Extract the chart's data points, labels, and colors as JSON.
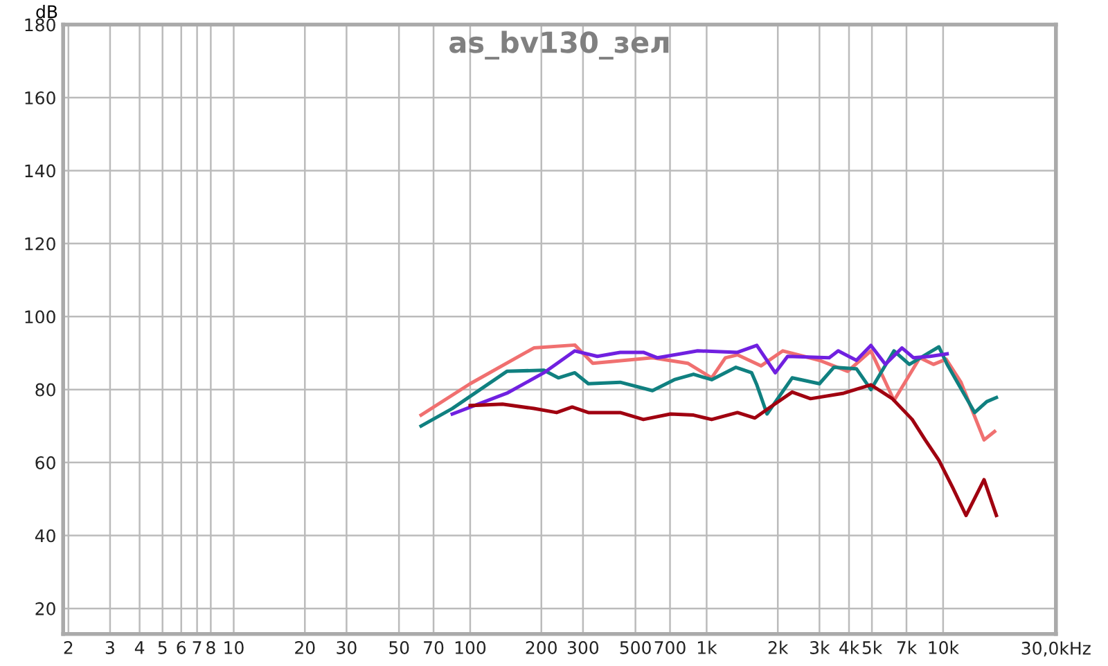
{
  "chart_data": {
    "type": "line",
    "title": "as_bv130_зел",
    "ylabel": "dB",
    "log": "x",
    "xlim": [
      1.9,
      30000
    ],
    "ylim": [
      13,
      180
    ],
    "xticks": [
      2,
      3,
      4,
      5,
      6,
      7,
      8,
      10,
      20,
      30,
      50,
      70,
      100,
      200,
      300,
      500,
      700,
      {
        "value": 1000,
        "label": "1k"
      },
      {
        "value": 2000,
        "label": "2k"
      },
      {
        "value": 3000,
        "label": "3k"
      },
      {
        "value": 4000,
        "label": "4k"
      },
      {
        "value": 5000,
        "label": "5k"
      },
      {
        "value": 7000,
        "label": "7k"
      },
      {
        "value": 10000,
        "label": "10k"
      }
    ],
    "xlabel": "30,0kHz",
    "yticks": [
      20,
      40,
      60,
      80,
      100,
      120,
      140,
      160,
      180
    ],
    "grid": true,
    "marker": "none",
    "line_style": "solid",
    "series": [
      {
        "color": "#f07070",
        "x": [
          62,
          100,
          186,
          277,
          330,
          590,
          832,
          1050,
          1200,
          1350,
          1700,
          2100,
          3000,
          3950,
          4950,
          6200,
          7970,
          9100,
          10300,
          11900,
          14900,
          16500
        ],
        "values": [
          73,
          81.6,
          91.4,
          92.2,
          87.2,
          88.7,
          87.2,
          83.2,
          88.7,
          89.5,
          86.5,
          90.6,
          88,
          85,
          90.6,
          77,
          88.7,
          86.9,
          88.3,
          82,
          66.2,
          68.5
        ]
      },
      {
        "color": "#108080",
        "x": [
          62,
          84,
          143,
          205,
          236,
          277,
          316,
          431,
          590,
          730,
          880,
          1050,
          1330,
          1550,
          1630,
          1800,
          2300,
          3000,
          3450,
          4300,
          4950,
          6200,
          7200,
          9600,
          10400,
          13600,
          15300,
          16800
        ],
        "values": [
          70,
          74.8,
          85,
          85.3,
          83.2,
          84.6,
          81.6,
          82,
          79.7,
          82.7,
          84.2,
          82.7,
          86.1,
          84.6,
          81.3,
          73.3,
          83.2,
          81.6,
          86.1,
          85.7,
          80,
          90.6,
          86.9,
          91.7,
          86.9,
          73.7,
          76.7,
          77.8
        ]
      },
      {
        "color": "#7020e0",
        "x": [
          84,
          143,
          205,
          277,
          345,
          431,
          540,
          620,
          916,
          1350,
          1630,
          1950,
          2200,
          3300,
          3600,
          4300,
          4950,
          5700,
          6700,
          7500,
          8800,
          10400
        ],
        "values": [
          73.3,
          79,
          84.6,
          90.6,
          89.1,
          90.2,
          90.2,
          88.7,
          90.6,
          90.2,
          92.1,
          84.6,
          89.1,
          88.7,
          90.6,
          88,
          92.1,
          86.9,
          91.4,
          88.7,
          89.1,
          89.8
        ]
      },
      {
        "color": "#a00010",
        "x": [
          100,
          137,
          186,
          232,
          270,
          316,
          431,
          540,
          703,
          880,
          1050,
          1350,
          1600,
          1860,
          2300,
          2750,
          3800,
          4950,
          6100,
          7400,
          8400,
          9600,
          11000,
          12500,
          14900,
          16800
        ],
        "values": [
          75.6,
          76,
          74.8,
          73.7,
          75.2,
          73.7,
          73.7,
          71.8,
          73.3,
          73,
          71.8,
          73.7,
          72.2,
          75.2,
          79.3,
          77.5,
          79,
          81.3,
          77.5,
          71.8,
          66.2,
          60.6,
          53,
          45.5,
          55.3,
          45.5
        ]
      }
    ]
  }
}
